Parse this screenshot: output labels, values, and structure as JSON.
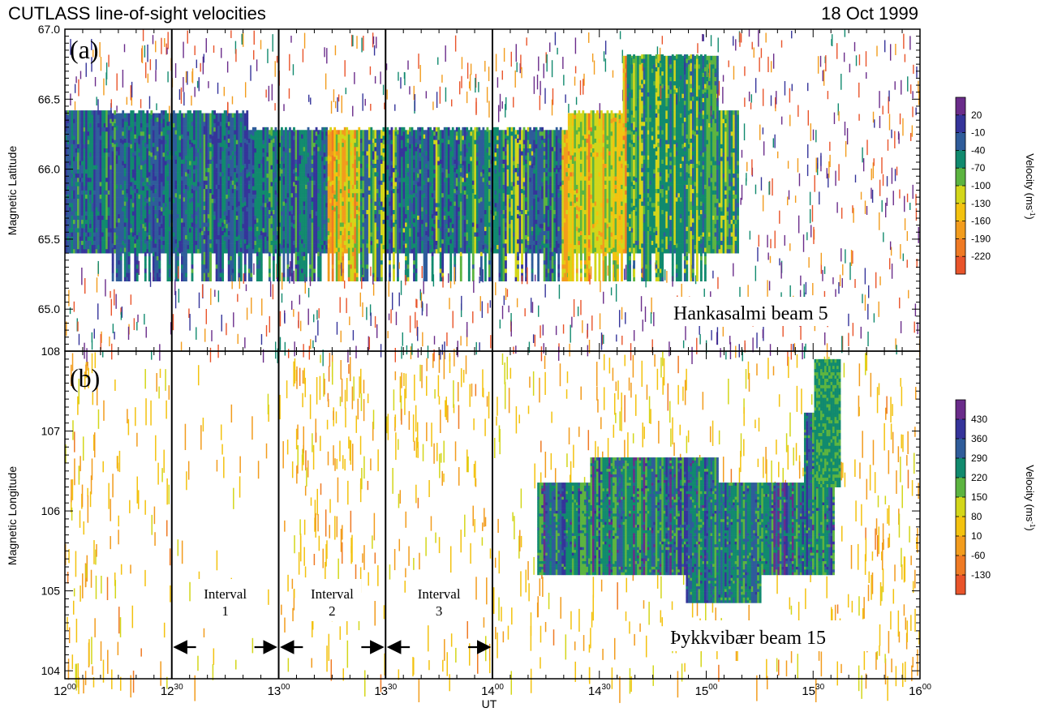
{
  "header": {
    "title": "CUTLASS line-of-sight velocities",
    "date": "18 Oct 1999"
  },
  "chart_data": [
    {
      "type": "heatmap",
      "panel_label": "(a)",
      "station_label": "Hankasalmi beam 5",
      "ylabel": "Magnetic Latitude",
      "xlabel": "",
      "xlim": [
        12.0,
        16.0
      ],
      "ylim": [
        64.7,
        67.0
      ],
      "y_ticks": [
        "65.0",
        "65.5",
        "66.0",
        "66.5",
        "67.0"
      ],
      "y_tick_values": [
        65.0,
        65.5,
        66.0,
        66.5,
        67.0
      ],
      "colorbar": {
        "label": "Velocity (ms",
        "label_exp": "-1",
        "label_close": ")",
        "ticks": [
          "20",
          "-10",
          "-40",
          "-70",
          "-100",
          "-130",
          "-160",
          "-190",
          "-220"
        ],
        "colors": [
          "#6a2c8a",
          "#35349a",
          "#2f5c9a",
          "#118a6e",
          "#5cb440",
          "#d3d61a",
          "#f3c20f",
          "#f29c1d",
          "#ef7a24",
          "#e9542a"
        ]
      },
      "scatter_region": {
        "x_start": 12.0,
        "x_end": 15.15,
        "y_bottom": 65.4,
        "y_top": 66.4,
        "extended_bottom": 65.2,
        "dominant": "blue-green",
        "bands": "yellow-orange near 13.3 and 14.4 UT"
      }
    },
    {
      "type": "heatmap",
      "panel_label": "(b)",
      "station_label": "Þykkvibær beam 15",
      "ylabel": "Magnetic Longitude",
      "xlabel": "UT",
      "xlim": [
        12.0,
        16.0
      ],
      "ylim": [
        103.9,
        108.0
      ],
      "y_ticks": [
        "104",
        "105",
        "106",
        "107",
        "108"
      ],
      "y_tick_values": [
        104,
        105,
        106,
        107,
        108
      ],
      "colorbar": {
        "label": "Velocity (ms",
        "label_exp": "-1",
        "label_close": ")",
        "ticks": [
          "430",
          "360",
          "290",
          "220",
          "150",
          "80",
          "10",
          "-60",
          "-130"
        ],
        "colors": [
          "#6a2c8a",
          "#35349a",
          "#2f5c9a",
          "#118a6e",
          "#5cb440",
          "#d3d61a",
          "#f3c20f",
          "#f29c1d",
          "#ef7a24",
          "#e9542a"
        ]
      },
      "intervals": [
        {
          "name": "Interval",
          "number": "1",
          "start": 12.5,
          "end": 13.0
        },
        {
          "name": "Interval",
          "number": "2",
          "start": 13.0,
          "end": 13.5
        },
        {
          "name": "Interval",
          "number": "3",
          "start": 13.5,
          "end": 14.0
        }
      ]
    }
  ],
  "x_axis": {
    "ticks": [
      {
        "hour": "12",
        "min": "00",
        "value": 12.0
      },
      {
        "hour": "12",
        "min": "30",
        "value": 12.5
      },
      {
        "hour": "13",
        "min": "00",
        "value": 13.0
      },
      {
        "hour": "13",
        "min": "30",
        "value": 13.5
      },
      {
        "hour": "14",
        "min": "00",
        "value": 14.0
      },
      {
        "hour": "14",
        "min": "30",
        "value": 14.5
      },
      {
        "hour": "15",
        "min": "00",
        "value": 15.0
      },
      {
        "hour": "15",
        "min": "30",
        "value": 15.5
      },
      {
        "hour": "16",
        "min": "00",
        "value": 16.0
      }
    ],
    "label": "UT"
  },
  "vertical_markers": [
    12.5,
    13.0,
    13.5,
    14.0
  ]
}
